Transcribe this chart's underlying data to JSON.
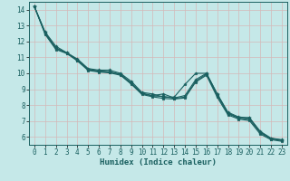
{
  "title": "",
  "xlabel": "Humidex (Indice chaleur)",
  "ylabel": "",
  "bg_color": "#c5e8e8",
  "grid_color": "#d4b8b8",
  "line_color": "#1a6060",
  "xlim": [
    -0.5,
    23.5
  ],
  "ylim": [
    5.5,
    14.5
  ],
  "xticks": [
    0,
    1,
    2,
    3,
    4,
    5,
    6,
    7,
    8,
    9,
    10,
    11,
    12,
    13,
    14,
    15,
    16,
    17,
    18,
    19,
    20,
    21,
    22,
    23
  ],
  "yticks": [
    6,
    7,
    8,
    9,
    10,
    11,
    12,
    13,
    14
  ],
  "series": [
    [
      14.2,
      12.6,
      11.7,
      11.3,
      10.9,
      10.3,
      10.2,
      10.2,
      10.0,
      9.5,
      8.8,
      8.7,
      8.5,
      8.5,
      9.3,
      10.0,
      10.0,
      8.7,
      7.5,
      7.2,
      7.2,
      6.3,
      5.9,
      5.8
    ],
    [
      14.2,
      12.55,
      11.6,
      11.3,
      10.85,
      10.25,
      10.15,
      10.1,
      9.95,
      9.4,
      8.75,
      8.6,
      8.7,
      8.45,
      8.6,
      9.6,
      10.0,
      8.7,
      7.55,
      7.25,
      7.2,
      6.35,
      5.92,
      5.82
    ],
    [
      14.2,
      12.5,
      11.55,
      11.28,
      10.82,
      10.22,
      10.12,
      10.07,
      9.92,
      9.37,
      8.72,
      8.57,
      8.55,
      8.42,
      8.5,
      9.5,
      9.95,
      8.6,
      7.45,
      7.18,
      7.1,
      6.25,
      5.87,
      5.77
    ],
    [
      14.2,
      12.45,
      11.5,
      11.25,
      10.78,
      10.18,
      10.08,
      10.03,
      9.88,
      9.32,
      8.67,
      8.52,
      8.42,
      8.38,
      8.45,
      9.45,
      9.88,
      8.5,
      7.38,
      7.12,
      7.02,
      6.18,
      5.82,
      5.72
    ]
  ],
  "marker": "*",
  "markersize": 2.5,
  "linewidth": 0.8,
  "label_fontsize": 6.5,
  "tick_fontsize": 5.5
}
